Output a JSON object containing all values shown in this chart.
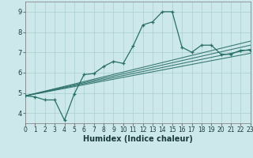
{
  "xlabel": "Humidex (Indice chaleur)",
  "xlim": [
    0,
    23
  ],
  "ylim": [
    3.5,
    9.5
  ],
  "yticks": [
    4,
    5,
    6,
    7,
    8,
    9
  ],
  "xticks": [
    0,
    1,
    2,
    3,
    4,
    5,
    6,
    7,
    8,
    9,
    10,
    11,
    12,
    13,
    14,
    15,
    16,
    17,
    18,
    19,
    20,
    21,
    22,
    23
  ],
  "bg_color": "#cce8ea",
  "line_color": "#2a6e68",
  "grid_color": "#aacfcf",
  "series_x": [
    0,
    1,
    2,
    3,
    4,
    5,
    6,
    7,
    8,
    9,
    10,
    11,
    12,
    13,
    14,
    15,
    16,
    17,
    18,
    19,
    20,
    21,
    22,
    23
  ],
  "series_y": [
    4.85,
    4.8,
    4.65,
    4.65,
    3.65,
    4.95,
    5.9,
    5.95,
    6.3,
    6.55,
    6.45,
    7.3,
    8.35,
    8.5,
    9.0,
    9.0,
    7.25,
    7.0,
    7.35,
    7.35,
    6.9,
    6.9,
    7.1,
    7.1
  ],
  "regression_lines": [
    {
      "x": [
        0,
        23
      ],
      "y": [
        4.85,
        7.55
      ]
    },
    {
      "x": [
        0,
        23
      ],
      "y": [
        4.85,
        7.35
      ]
    },
    {
      "x": [
        0,
        23
      ],
      "y": [
        4.85,
        7.15
      ]
    },
    {
      "x": [
        0,
        23
      ],
      "y": [
        4.85,
        6.95
      ]
    }
  ],
  "xlabel_fontsize": 7,
  "tick_fontsize": 5.5,
  "ytick_fontsize": 6
}
